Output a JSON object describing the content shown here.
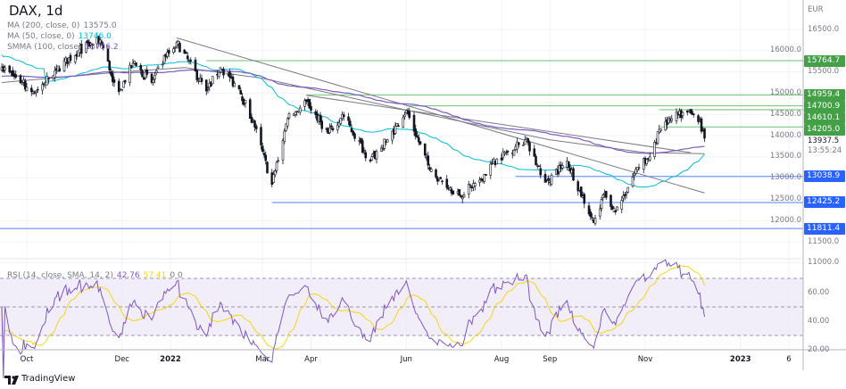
{
  "header": {
    "title": "DAX, 1d"
  },
  "legend": {
    "ma200": {
      "label": "MA (200, close, 0)",
      "value": "13575.0",
      "color": "#787b86"
    },
    "ma50": {
      "label": "MA (50, close, 0)",
      "value": "13746.0",
      "color": "#00bcd4"
    },
    "smma100": {
      "label": "SMMA (100, close)",
      "value": "13756.2",
      "color": "#7e57c2"
    },
    "rsi": {
      "label": "RSI (14, close, SMA, 14, 2)",
      "value": "42.76",
      "sma_value": "57.41",
      "extra": "0  0",
      "color": "#7e57c2",
      "sma_color": "#f5d515"
    }
  },
  "axis": {
    "currency": "EUR",
    "last_price": "13937.5",
    "countdown": "13:55:24"
  },
  "footer": {
    "brand": "TradingView"
  },
  "chart_data": {
    "type": "candlestick",
    "symbol": "DAX",
    "interval": "1d",
    "price_range": [
      11000,
      16700
    ],
    "y_ticks": [
      "16500.0",
      "16000.0",
      "15500.0",
      "15000.0",
      "14500.0",
      "14000.0",
      "13500.0",
      "13000.0",
      "12500.0",
      "12000.0",
      "11500.0",
      "11000.0"
    ],
    "rsi_ticks": [
      "60.00",
      "40.00",
      "20.00"
    ],
    "rsi_bands": [
      70,
      30
    ],
    "x_ticks": [
      {
        "label": "Oct",
        "date": "2021-10-01"
      },
      {
        "label": "Dec",
        "date": "2021-12-01"
      },
      {
        "label": "2022",
        "date": "2022-01-01"
      },
      {
        "label": "Mar",
        "date": "2022-03-01"
      },
      {
        "label": "Apr",
        "date": "2022-04-01"
      },
      {
        "label": "Jun",
        "date": "2022-06-01"
      },
      {
        "label": "Aug",
        "date": "2022-08-01"
      },
      {
        "label": "Sep",
        "date": "2022-09-01"
      },
      {
        "label": "Nov",
        "date": "2022-11-01"
      },
      {
        "label": "2023",
        "date": "2023-01-01"
      },
      {
        "label": "6",
        "date": "2023-02-01"
      }
    ],
    "close_keypoints": [
      [
        "2021-09-15",
        15600
      ],
      [
        "2021-09-28",
        15250
      ],
      [
        "2021-10-06",
        15000
      ],
      [
        "2021-10-20",
        15550
      ],
      [
        "2021-11-03",
        16000
      ],
      [
        "2021-11-17",
        16250
      ],
      [
        "2021-11-26",
        15250
      ],
      [
        "2021-11-30",
        15100
      ],
      [
        "2021-12-08",
        15700
      ],
      [
        "2021-12-20",
        15250
      ],
      [
        "2021-12-29",
        15850
      ],
      [
        "2022-01-05",
        16200
      ],
      [
        "2022-01-24",
        15050
      ],
      [
        "2022-02-02",
        15600
      ],
      [
        "2022-02-14",
        15100
      ],
      [
        "2022-02-24",
        14200
      ],
      [
        "2022-03-07",
        12850
      ],
      [
        "2022-03-17",
        14400
      ],
      [
        "2022-03-29",
        14800
      ],
      [
        "2022-04-12",
        14050
      ],
      [
        "2022-04-21",
        14500
      ],
      [
        "2022-05-09",
        13400
      ],
      [
        "2022-05-20",
        13900
      ],
      [
        "2022-06-01",
        14600
      ],
      [
        "2022-06-16",
        13200
      ],
      [
        "2022-06-22",
        13000
      ],
      [
        "2022-07-05",
        12600
      ],
      [
        "2022-07-18",
        12950
      ],
      [
        "2022-07-29",
        13450
      ],
      [
        "2022-08-16",
        13900
      ],
      [
        "2022-08-29",
        12900
      ],
      [
        "2022-09-12",
        13400
      ],
      [
        "2022-09-29",
        11950
      ],
      [
        "2022-10-05",
        12600
      ],
      [
        "2022-10-13",
        12200
      ],
      [
        "2022-10-27",
        13250
      ],
      [
        "2022-11-04",
        13500
      ],
      [
        "2022-11-10",
        14150
      ],
      [
        "2022-11-18",
        14400
      ],
      [
        "2022-11-28",
        14550
      ],
      [
        "2022-12-01",
        14500
      ],
      [
        "2022-12-06",
        14350
      ],
      [
        "2022-12-07",
        14100
      ],
      [
        "2022-12-09",
        13937.5
      ]
    ],
    "ma200_keypoints": [
      [
        "2021-09-15",
        15250
      ],
      [
        "2021-12-01",
        15500
      ],
      [
        "2022-01-10",
        15600
      ],
      [
        "2022-03-01",
        15350
      ],
      [
        "2022-06-01",
        14600
      ],
      [
        "2022-09-01",
        13900
      ],
      [
        "2022-11-01",
        13600
      ],
      [
        "2022-12-09",
        13575
      ]
    ],
    "horizontal_levels": [
      {
        "value": 15764.7,
        "label": "15764.7",
        "from": "2022-01-24",
        "color": "#4caf50"
      },
      {
        "value": 14959.4,
        "label": "14959.4",
        "from": "2022-03-29",
        "color": "#4caf50"
      },
      {
        "value": 14700.9,
        "label": "14700.9",
        "from": "2022-06-01",
        "color": "#4caf50"
      },
      {
        "value": 14610.1,
        "label": "14610.1",
        "from": "2022-11-10",
        "color": "#4caf50"
      },
      {
        "value": 14205.0,
        "label": "14205.0",
        "from": "2022-11-10",
        "color": "#4caf50"
      },
      {
        "value": 13038.9,
        "label": "13038.9",
        "from": "2022-08-10",
        "color": "#2962ff"
      },
      {
        "value": 12425.2,
        "label": "12425.2",
        "from": "2022-03-07",
        "color": "#2962ff"
      },
      {
        "value": 11811.4,
        "label": "11811.4",
        "from": "2021-09-01",
        "color": "#2962ff"
      }
    ],
    "trend_lines": [
      {
        "from": [
          "2022-01-05",
          16300
        ],
        "to": [
          "2022-12-09",
          12650
        ],
        "color": "#787b86"
      },
      {
        "from": [
          "2022-03-29",
          14950
        ],
        "to": [
          "2022-11-30",
          13600
        ],
        "color": "#787b86"
      }
    ],
    "colors": {
      "up": "#131722",
      "down": "#131722",
      "ma50": "#00bcd4",
      "ma200": "#787b86",
      "smma": "#7e57c2",
      "rsi": "#7e57c2",
      "rsi_sma": "#f5d515",
      "rsi_band_fill": "#ede7f6"
    }
  }
}
